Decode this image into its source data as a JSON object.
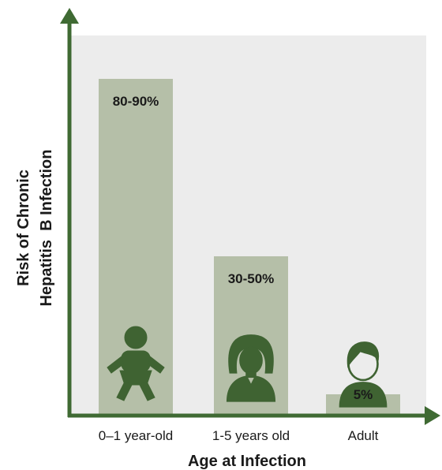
{
  "colors": {
    "plot_bg": "#ececec",
    "bar": "#b5bfa8",
    "axis": "#3f6a33",
    "icon": "#3f6332",
    "bar_text_light": "#ffffff",
    "bar_text_dark": "#1a1a1a"
  },
  "chart_data": {
    "type": "bar",
    "categories": [
      "0–1 year-old",
      "1-5 years old",
      "Adult"
    ],
    "values": [
      85,
      40,
      5
    ],
    "value_labels": [
      "80-90%",
      "30-50%",
      "5%"
    ],
    "icons": [
      "baby-icon",
      "child-icon",
      "adult-person-icon"
    ],
    "xlabel": "Age at Infection",
    "ylabel_lines": [
      "Risk of Chronic",
      "Hepatitis  B Infection"
    ],
    "ylim": [
      0,
      100
    ],
    "grid": false,
    "legend": "none"
  }
}
